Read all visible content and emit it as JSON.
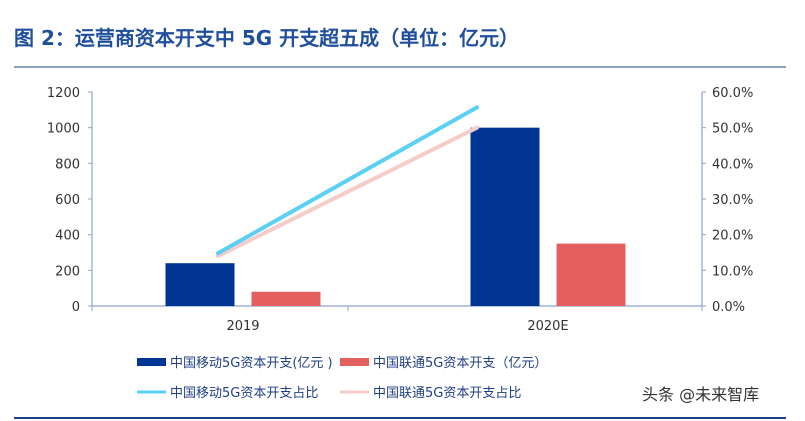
{
  "title": "图 2：运营商资本开支中 5G 开支超五成（单位：亿元）",
  "watermark": "头条 @未来智库",
  "chart_data": {
    "type": "bar+line",
    "title": "图 2：运营商资本开支中 5G 开支超五成（单位：亿元）",
    "categories": [
      "2019",
      "2020E"
    ],
    "y_left": {
      "range": [
        0,
        1200
      ],
      "ticks": [
        "0",
        "200",
        "400",
        "600",
        "800",
        "1000",
        "1200"
      ]
    },
    "y_right": {
      "range": [
        0,
        60
      ],
      "ticks": [
        "0.0%",
        "10.0%",
        "20.0%",
        "30.0%",
        "40.0%",
        "50.0%",
        "60.0%"
      ]
    },
    "series": [
      {
        "name": "中国移动5G资本开支(亿元 )",
        "type": "bar",
        "axis": "left",
        "color": "#003594",
        "values": [
          240,
          1000
        ]
      },
      {
        "name": "中国联通5G资本开支（亿元）",
        "type": "bar",
        "axis": "left",
        "color": "#e46060",
        "values": [
          80,
          350
        ]
      },
      {
        "name": "中国移动5G资本开支占比",
        "type": "line",
        "axis": "right",
        "color": "#5bd0f5",
        "values": [
          14.8,
          55.7
        ]
      },
      {
        "name": "中国联通5G资本开支占比",
        "type": "line",
        "axis": "right",
        "color": "#f5cccc",
        "values": [
          14.0,
          50.0
        ]
      }
    ],
    "grid": false,
    "legend": "bottom"
  }
}
